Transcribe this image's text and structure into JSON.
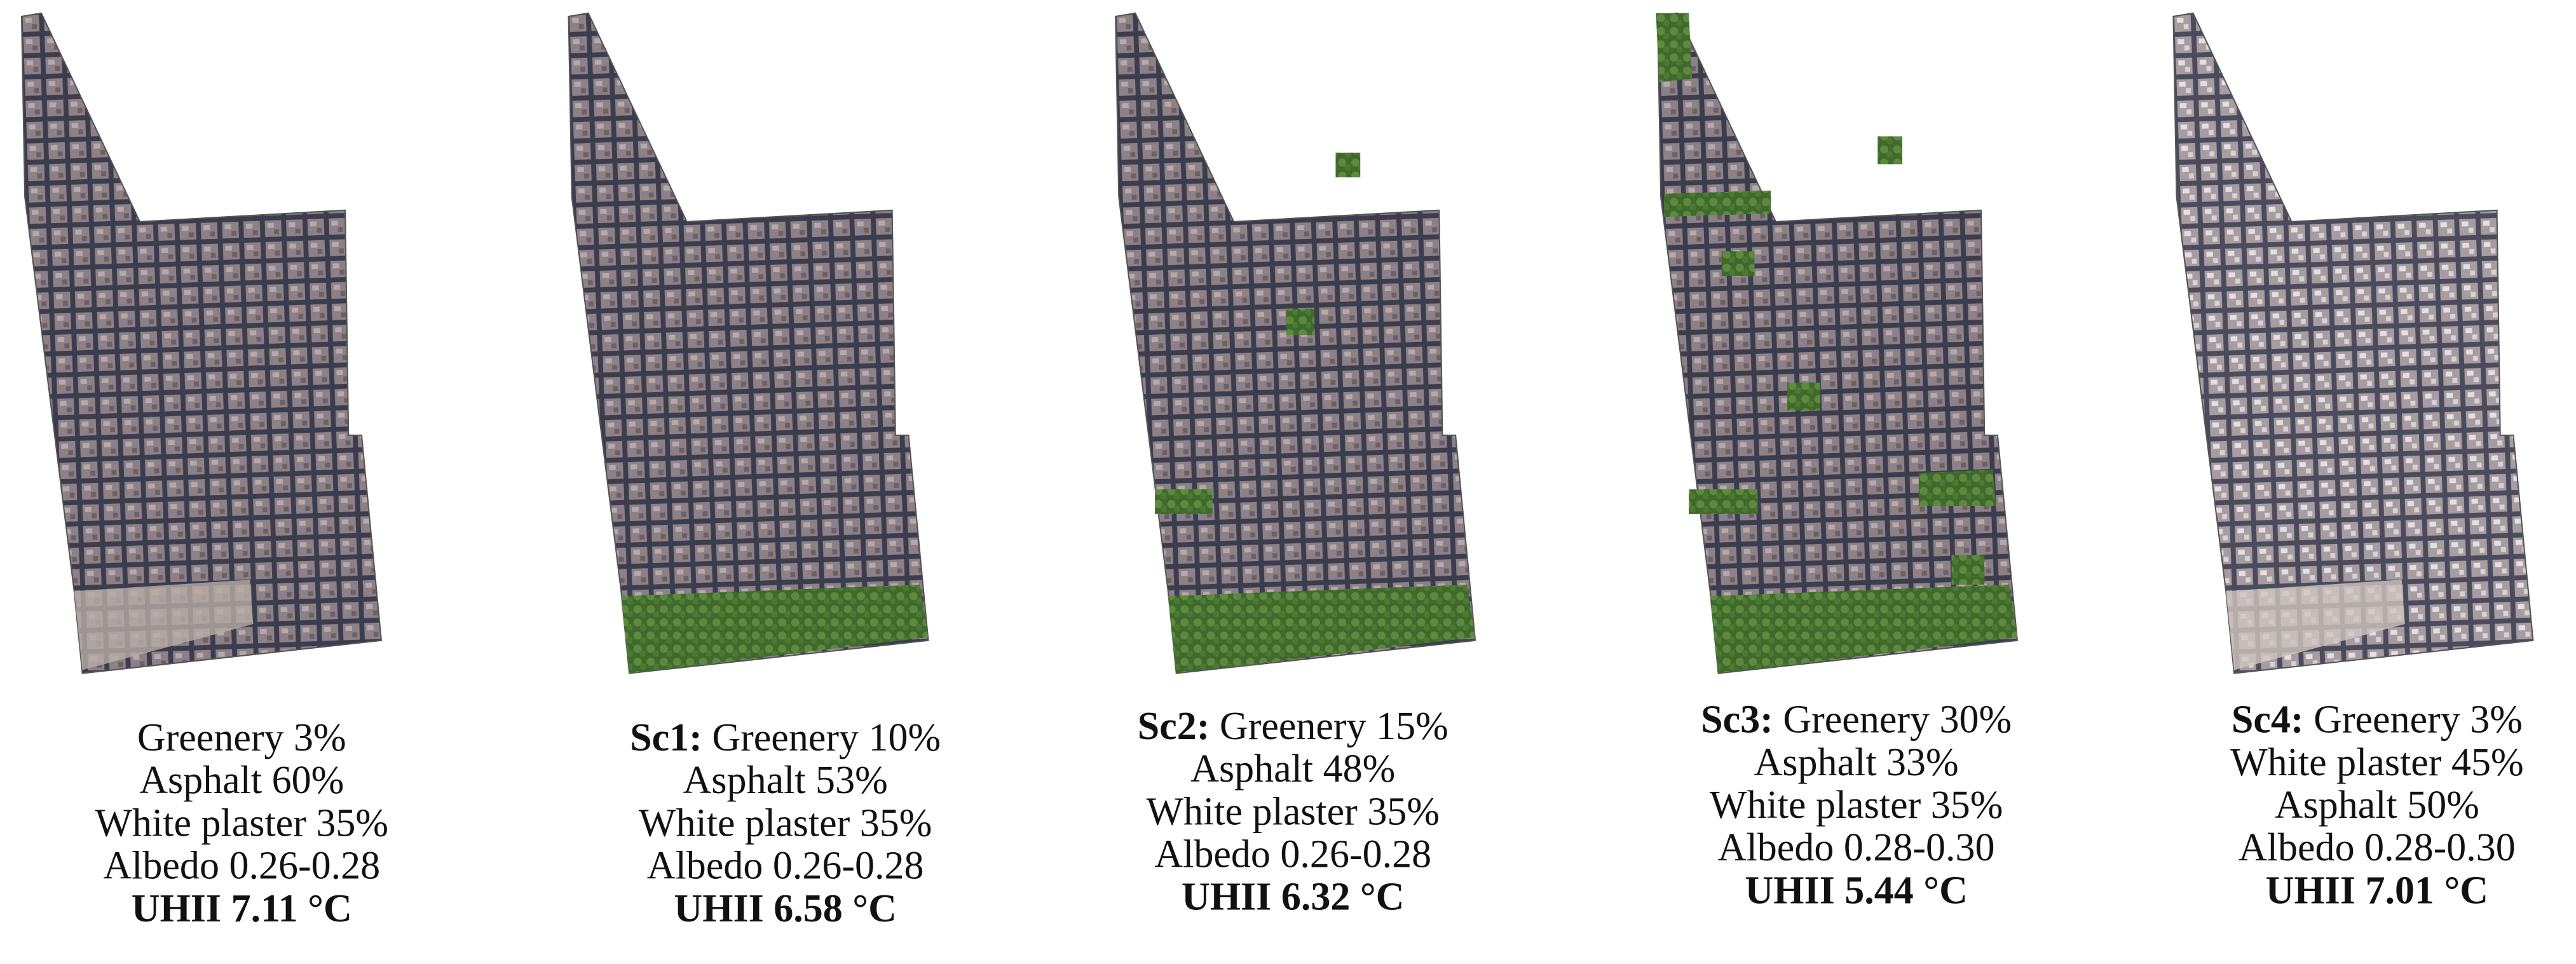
{
  "panels": [
    {
      "lines": [
        "Greenery 3%",
        "Asphalt 60%",
        "White plaster 35%",
        "Albedo 0.26-0.28"
      ],
      "uhii": "UHII 7.11 °C"
    },
    {
      "label": "Sc1:",
      "lines": [
        "Greenery 10%",
        "Asphalt 53%",
        "White plaster 35%",
        "Albedo 0.26-0.28"
      ],
      "uhii": "UHII 6.58 °C"
    },
    {
      "label": "Sc2:",
      "lines": [
        "Greenery 15%",
        "Asphalt 48%",
        "White plaster 35%",
        "Albedo 0.26-0.28"
      ],
      "uhii": "UHII 6.32 °C"
    },
    {
      "label": "Sc3:",
      "lines": [
        "Greenery 30%",
        "Asphalt 33%",
        "White plaster 35%",
        "Albedo 0.28-0.30"
      ],
      "uhii": "UHII 5.44 °C"
    },
    {
      "label": "Sc4:",
      "lines": [
        "Greenery 3%",
        "White plaster 45%",
        "Asphalt 50%",
        "Albedo 0.28-0.30"
      ],
      "uhii": "UHII 7.01 °C"
    }
  ]
}
